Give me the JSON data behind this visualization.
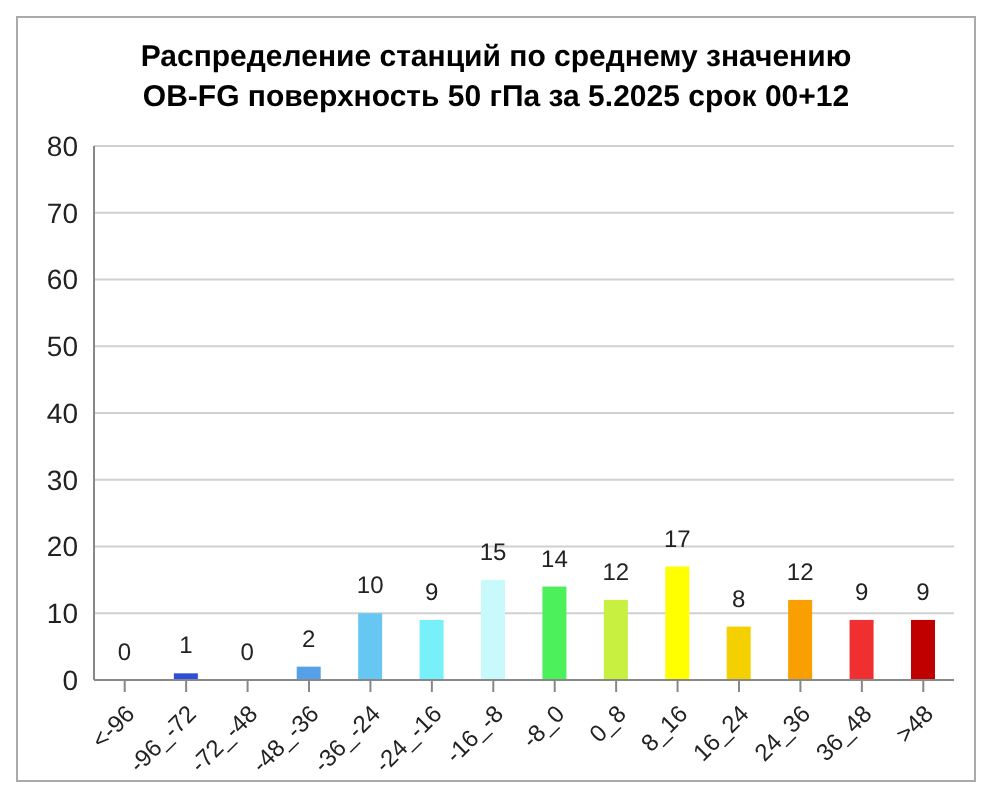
{
  "chart_data": {
    "type": "bar",
    "title": "Распределение станций по среднему значению\nOB-FG поверхность  50 гПа за 5.2025 срок 00+12",
    "categories": [
      "<-96",
      "-96_-72",
      "-72_-48",
      "-48_-36",
      "-36_-24",
      "-24_-16",
      "-16_-8",
      "-8_0",
      "0_8",
      "8_16",
      "16_24",
      "24_36",
      "36_48",
      ">48"
    ],
    "values": [
      0,
      1,
      0,
      2,
      10,
      9,
      15,
      14,
      12,
      17,
      8,
      12,
      9,
      9
    ],
    "colors": [
      "#2a3fb0",
      "#2e4fd6",
      "#3a6fe0",
      "#55a0e8",
      "#66c8f2",
      "#77f0fa",
      "#c8fafc",
      "#4cf05a",
      "#c8f040",
      "#ffff00",
      "#f5d000",
      "#f9a000",
      "#f03030",
      "#c00000"
    ],
    "ylim": [
      0,
      80
    ],
    "yticks": [
      0,
      10,
      20,
      30,
      40,
      50,
      60,
      70,
      80
    ],
    "grid": "y",
    "data_labels": true
  }
}
